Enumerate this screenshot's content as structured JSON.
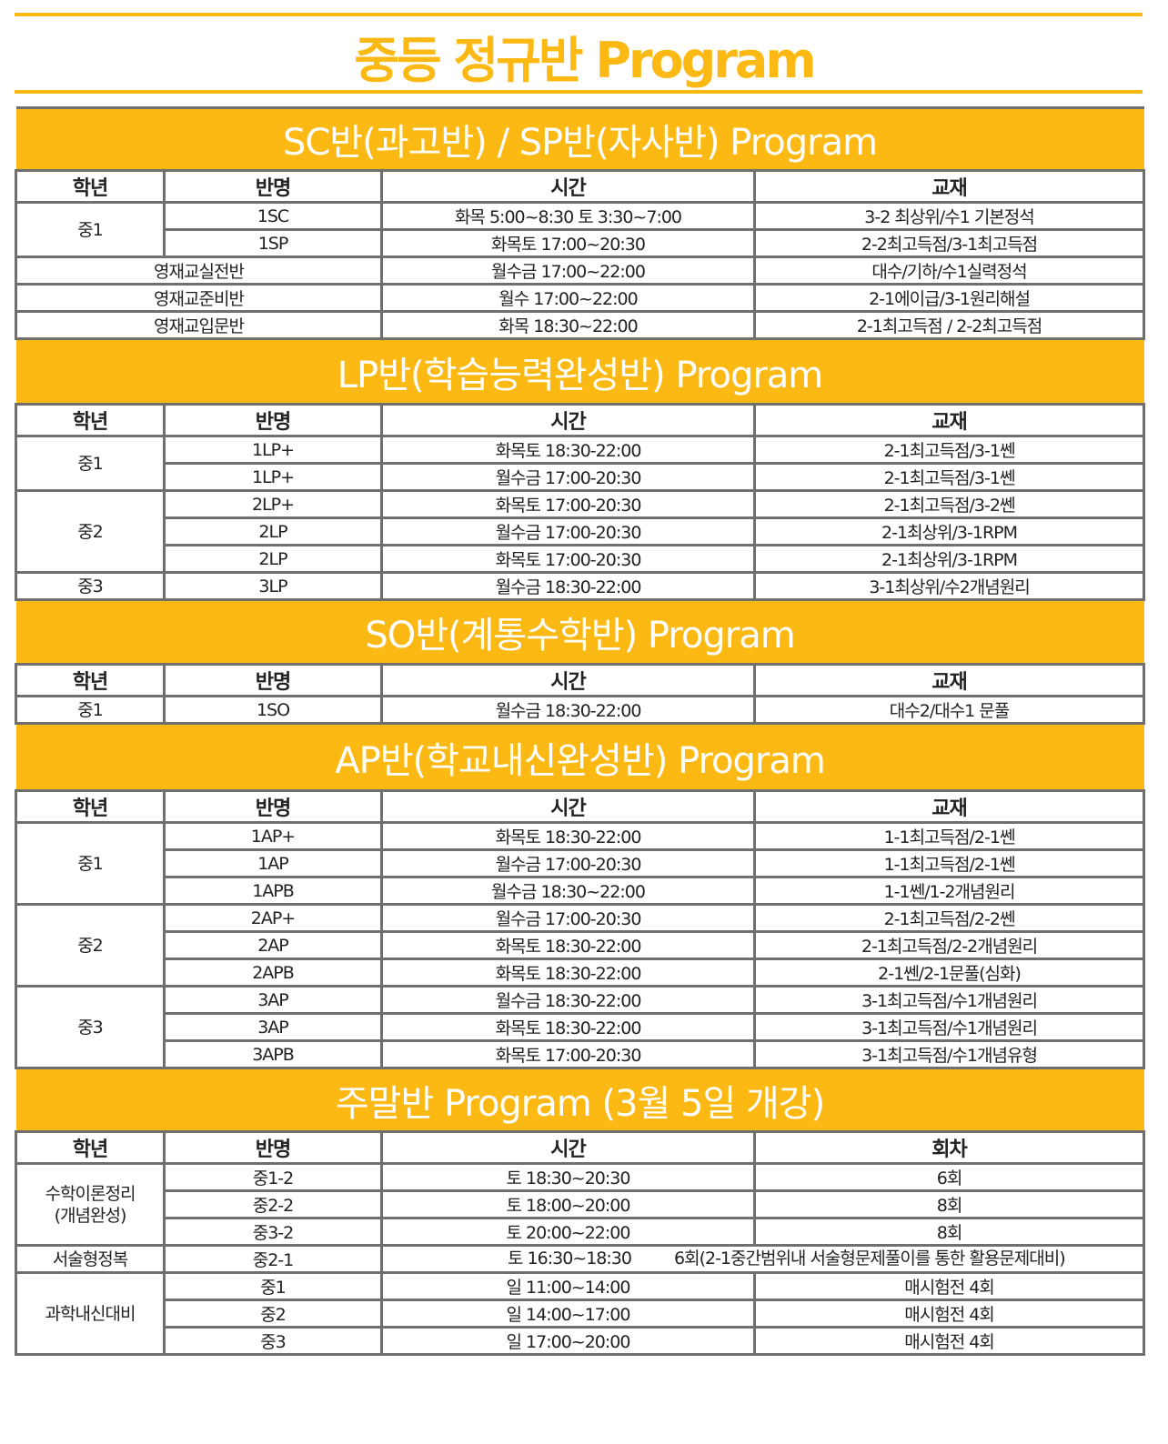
{
  "title": "중등 정규반 Program",
  "accent_color": "#fdb913",
  "border_color": "#6f6f6f",
  "sections": [
    {
      "title": "SC반(과고반) / SP반(자사반) Program",
      "headers": [
        "학년",
        "반명",
        "시간",
        "교재"
      ],
      "groups": [
        {
          "grade": "중1",
          "rows": [
            {
              "name": "1SC",
              "time": "화목 5:00~8:30 토 3:30~7:00",
              "book": "3-2 최상위/수1 기본정석"
            },
            {
              "name": "1SP",
              "time": "화목토 17:00~20:30",
              "book": "2-2최고득점/3-1최고득점"
            }
          ]
        },
        {
          "merged": "영재교실전반",
          "rows": [
            {
              "time": "월수금 17:00~22:00",
              "book": "대수/기하/수1실력정석"
            }
          ]
        },
        {
          "merged": "영재교준비반",
          "rows": [
            {
              "time": "월수 17:00~22:00",
              "book": "2-1에이급/3-1원리해설"
            }
          ]
        },
        {
          "merged": "영재교입문반",
          "rows": [
            {
              "time": "화목 18:30~22:00",
              "book": "2-1최고득점 / 2-2최고득점"
            }
          ]
        }
      ]
    },
    {
      "title": "LP반(학습능력완성반) Program",
      "headers": [
        "학년",
        "반명",
        "시간",
        "교재"
      ],
      "groups": [
        {
          "grade": "중1",
          "rows": [
            {
              "name": "1LP+",
              "time": "화목토 18:30-22:00",
              "book": "2-1최고득점/3-1쎈"
            },
            {
              "name": "1LP+",
              "time": "월수금 17:00-20:30",
              "book": "2-1최고득점/3-1쎈"
            }
          ]
        },
        {
          "grade": "중2",
          "rows": [
            {
              "name": "2LP+",
              "time": "화목토 17:00-20:30",
              "book": "2-1최고득점/3-2쎈"
            },
            {
              "name": "2LP",
              "time": "월수금 17:00-20:30",
              "book": "2-1최상위/3-1RPM"
            },
            {
              "name": "2LP",
              "time": "화목토 17:00-20:30",
              "book": "2-1최상위/3-1RPM"
            }
          ]
        },
        {
          "grade": "중3",
          "rows": [
            {
              "name": "3LP",
              "time": "월수금 18:30-22:00",
              "book": "3-1최상위/수2개념원리"
            }
          ]
        }
      ]
    },
    {
      "title": "SO반(계통수학반) Program",
      "headers": [
        "학년",
        "반명",
        "시간",
        "교재"
      ],
      "groups": [
        {
          "grade": "중1",
          "rows": [
            {
              "name": "1SO",
              "time": "월수금 18:30-22:00",
              "book": "대수2/대수1 문풀"
            }
          ]
        }
      ]
    },
    {
      "title": "AP반(학교내신완성반) Program",
      "headers": [
        "학년",
        "반명",
        "시간",
        "교재"
      ],
      "groups": [
        {
          "grade": "중1",
          "rows": [
            {
              "name": "1AP+",
              "time": "화목토 18:30-22:00",
              "book": "1-1최고득점/2-1쎈"
            },
            {
              "name": "1AP",
              "time": "월수금 17:00-20:30",
              "book": "1-1최고득점/2-1쎈"
            },
            {
              "name": "1APB",
              "time": "월수금 18:30~22:00",
              "book": "1-1쎈/1-2개념원리"
            }
          ]
        },
        {
          "grade": "중2",
          "rows": [
            {
              "name": "2AP+",
              "time": "월수금 17:00-20:30",
              "book": "2-1최고득점/2-2쎈"
            },
            {
              "name": "2AP",
              "time": "화목토 18:30-22:00",
              "book": "2-1최고득점/2-2개념원리"
            },
            {
              "name": "2APB",
              "time": "화목토 18:30-22:00",
              "book": "2-1쎈/2-1문풀(심화)"
            }
          ]
        },
        {
          "grade": "중3",
          "rows": [
            {
              "name": "3AP",
              "time": "월수금 18:30-22:00",
              "book": "3-1최고득점/수1개념원리"
            },
            {
              "name": "3AP",
              "time": "화목토 18:30-22:00",
              "book": "3-1최고득점/수1개념원리"
            },
            {
              "name": "3APB",
              "time": "화목토 17:00-20:30",
              "book": "3-1최고득점/수1개념유형"
            }
          ]
        }
      ]
    },
    {
      "title": "주말반 Program (3월 5일 개강)",
      "headers": [
        "학년",
        "반명",
        "시간",
        "회차"
      ],
      "groups": [
        {
          "grade": "수학이론정리\n(개념완성)",
          "rows": [
            {
              "name": "중1-2",
              "time": "토 18:30~20:30",
              "book": "6회"
            },
            {
              "name": "중2-2",
              "time": "토 18:00~20:00",
              "book": "8회"
            },
            {
              "name": "중3-2",
              "time": "토 20:00~22:00",
              "book": "8회"
            }
          ]
        },
        {
          "grade": "서술형정복",
          "rows": [
            {
              "name": "중2-1",
              "time": "토 16:30~18:30",
              "book": "6회(2-1중간범위내 서술형문제풀이를 통한 활용문제대비)",
              "overflow": true
            }
          ]
        },
        {
          "grade": "과학내신대비",
          "rows": [
            {
              "name": "중1",
              "time": "일 11:00~14:00",
              "book": "매시험전 4회"
            },
            {
              "name": "중2",
              "time": "일 14:00~17:00",
              "book": "매시험전 4회"
            },
            {
              "name": "중3",
              "time": "일 17:00~20:00",
              "book": "매시험전 4회"
            }
          ]
        }
      ]
    }
  ]
}
